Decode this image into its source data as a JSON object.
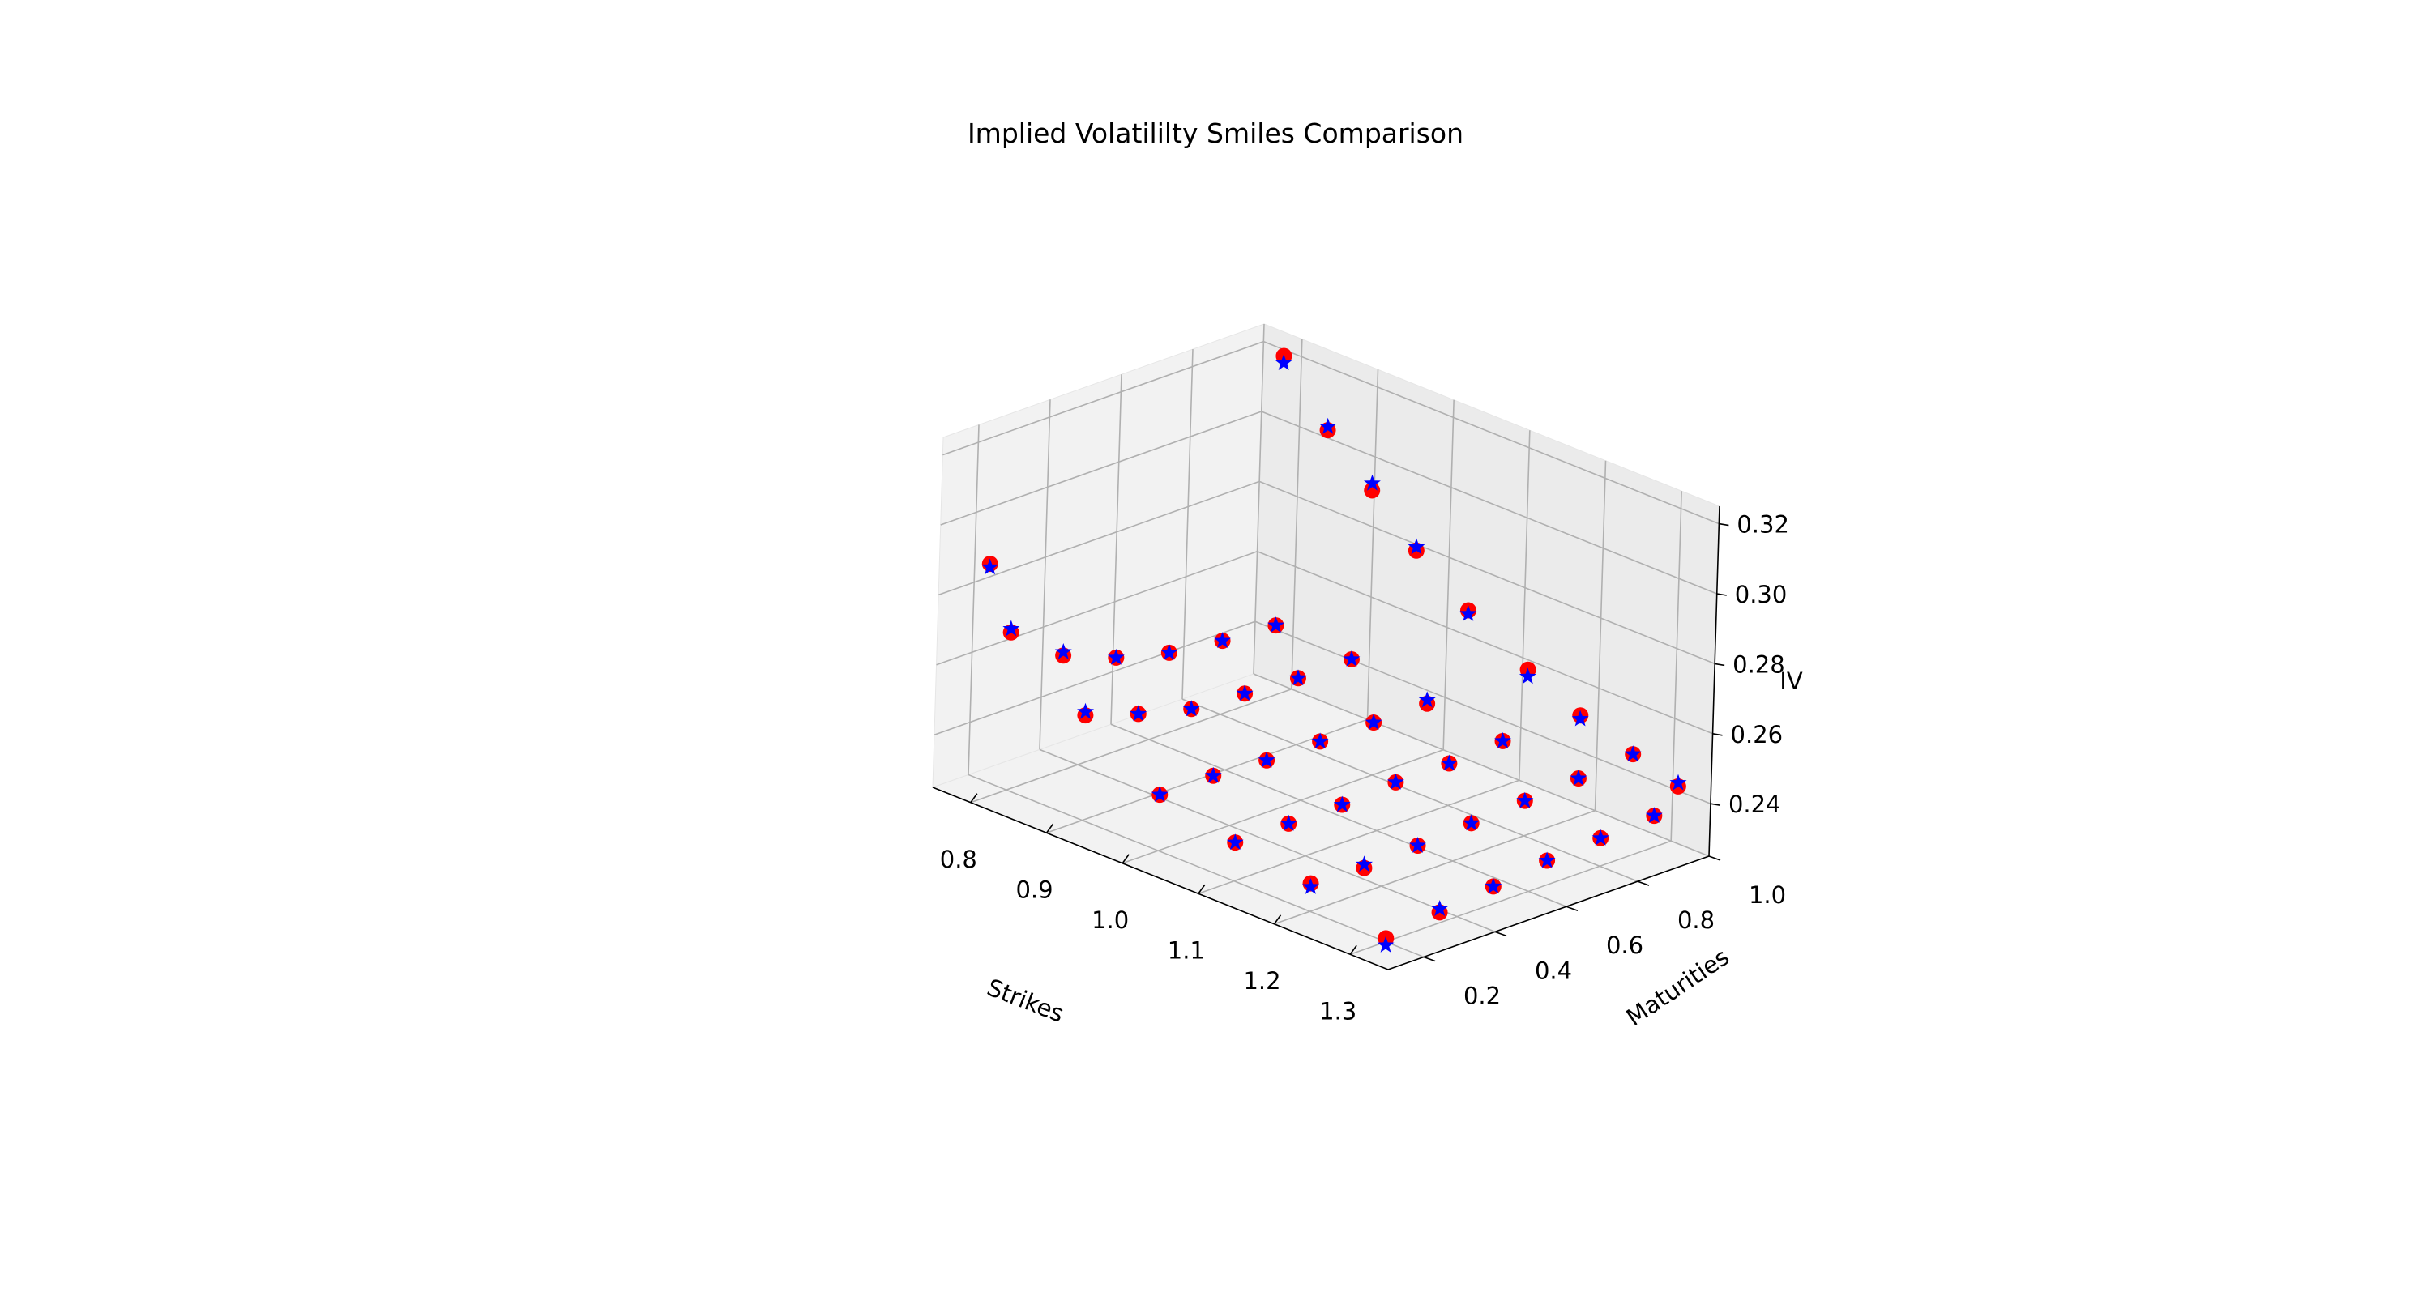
{
  "chart_data": {
    "type": "scatter",
    "projection": "3d",
    "title": "Implied Volatililty Smiles Comparison",
    "xlabel": "Strikes",
    "ylabel": "Maturities",
    "zlabel": "IV",
    "xlim": [
      0.75,
      1.35
    ],
    "ylim": [
      0.1,
      1.0
    ],
    "zlim": [
      0.225,
      0.325
    ],
    "xticks": [
      "0.8",
      "0.9",
      "1.0",
      "1.1",
      "1.2",
      "1.3"
    ],
    "yticks": [
      "0.2",
      "0.4",
      "0.6",
      "0.8",
      "1.0"
    ],
    "zticks": [
      "0.24",
      "0.26",
      "0.28",
      "0.30",
      "0.32"
    ],
    "grid": true,
    "series": [
      {
        "marker": "circle",
        "color": "#ff0000",
        "points": [
          [
            0.77,
            0.2,
            0.287
          ],
          [
            0.8,
            0.2,
            0.27
          ],
          [
            0.8,
            0.35,
            0.258
          ],
          [
            0.8,
            0.5,
            0.252
          ],
          [
            0.8,
            0.65,
            0.248
          ],
          [
            0.8,
            0.8,
            0.246
          ],
          [
            0.8,
            0.95,
            0.245
          ],
          [
            0.9,
            0.2,
            0.255
          ],
          [
            0.9,
            0.35,
            0.25
          ],
          [
            0.9,
            0.5,
            0.246
          ],
          [
            0.9,
            0.65,
            0.245
          ],
          [
            0.9,
            0.8,
            0.244
          ],
          [
            0.9,
            0.95,
            0.244
          ],
          [
            1.0,
            0.2,
            0.241
          ],
          [
            1.0,
            0.35,
            0.241
          ],
          [
            1.0,
            0.5,
            0.24
          ],
          [
            1.0,
            0.65,
            0.24
          ],
          [
            1.0,
            0.8,
            0.24
          ],
          [
            1.0,
            0.95,
            0.24
          ],
          [
            1.1,
            0.2,
            0.236
          ],
          [
            1.1,
            0.35,
            0.236
          ],
          [
            1.1,
            0.5,
            0.236
          ],
          [
            1.1,
            0.65,
            0.237
          ],
          [
            1.1,
            0.8,
            0.237
          ],
          [
            1.1,
            0.95,
            0.238
          ],
          [
            1.2,
            0.2,
            0.233
          ],
          [
            1.2,
            0.35,
            0.232
          ],
          [
            1.2,
            0.5,
            0.233
          ],
          [
            1.2,
            0.65,
            0.234
          ],
          [
            1.2,
            0.8,
            0.235
          ],
          [
            1.2,
            0.95,
            0.236
          ],
          [
            1.3,
            0.2,
            0.226
          ],
          [
            1.3,
            0.35,
            0.228
          ],
          [
            1.3,
            0.5,
            0.23
          ],
          [
            1.3,
            0.65,
            0.232
          ],
          [
            1.3,
            0.8,
            0.233
          ],
          [
            1.3,
            0.95,
            0.234
          ],
          [
            0.8,
            0.95,
            0.322
          ],
          [
            0.86,
            0.95,
            0.306
          ],
          [
            0.92,
            0.95,
            0.294
          ],
          [
            0.98,
            0.95,
            0.282
          ],
          [
            1.05,
            0.95,
            0.271
          ],
          [
            1.13,
            0.95,
            0.261
          ],
          [
            1.2,
            0.95,
            0.254
          ],
          [
            1.27,
            0.95,
            0.249
          ],
          [
            1.33,
            0.95,
            0.245
          ]
        ]
      },
      {
        "marker": "star",
        "color": "#0000ff",
        "points": [
          [
            0.77,
            0.2,
            0.286
          ],
          [
            0.8,
            0.2,
            0.271
          ],
          [
            0.8,
            0.35,
            0.259
          ],
          [
            0.8,
            0.5,
            0.252
          ],
          [
            0.8,
            0.65,
            0.248
          ],
          [
            0.8,
            0.8,
            0.246
          ],
          [
            0.8,
            0.95,
            0.245
          ],
          [
            0.9,
            0.2,
            0.256
          ],
          [
            0.9,
            0.35,
            0.25
          ],
          [
            0.9,
            0.5,
            0.246
          ],
          [
            0.9,
            0.65,
            0.245
          ],
          [
            0.9,
            0.8,
            0.244
          ],
          [
            0.9,
            0.95,
            0.244
          ],
          [
            1.0,
            0.2,
            0.241
          ],
          [
            1.0,
            0.35,
            0.241
          ],
          [
            1.0,
            0.5,
            0.24
          ],
          [
            1.0,
            0.65,
            0.24
          ],
          [
            1.0,
            0.8,
            0.24
          ],
          [
            1.0,
            0.95,
            0.241
          ],
          [
            1.1,
            0.2,
            0.236
          ],
          [
            1.1,
            0.35,
            0.236
          ],
          [
            1.1,
            0.5,
            0.236
          ],
          [
            1.1,
            0.65,
            0.237
          ],
          [
            1.1,
            0.8,
            0.237
          ],
          [
            1.1,
            0.95,
            0.238
          ],
          [
            1.2,
            0.2,
            0.232
          ],
          [
            1.2,
            0.35,
            0.233
          ],
          [
            1.2,
            0.5,
            0.233
          ],
          [
            1.2,
            0.65,
            0.234
          ],
          [
            1.2,
            0.8,
            0.235
          ],
          [
            1.2,
            0.95,
            0.236
          ],
          [
            1.3,
            0.2,
            0.224
          ],
          [
            1.3,
            0.35,
            0.229
          ],
          [
            1.3,
            0.5,
            0.23
          ],
          [
            1.3,
            0.65,
            0.232
          ],
          [
            1.3,
            0.8,
            0.233
          ],
          [
            1.3,
            0.95,
            0.234
          ],
          [
            0.8,
            0.95,
            0.32
          ],
          [
            0.86,
            0.95,
            0.307
          ],
          [
            0.92,
            0.95,
            0.296
          ],
          [
            0.98,
            0.95,
            0.283
          ],
          [
            1.05,
            0.95,
            0.27
          ],
          [
            1.13,
            0.95,
            0.259
          ],
          [
            1.2,
            0.95,
            0.253
          ],
          [
            1.27,
            0.95,
            0.249
          ],
          [
            1.33,
            0.95,
            0.246
          ]
        ]
      }
    ]
  }
}
